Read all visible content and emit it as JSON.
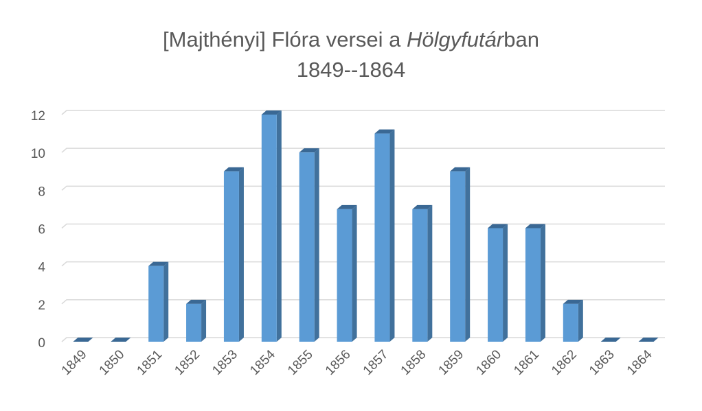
{
  "chart_data": {
    "type": "bar",
    "title": [
      {
        "text": "[Majthényi] Flóra versei a "
      },
      {
        "text": "Hölgyfutár",
        "style": "italic"
      },
      {
        "text": "ban"
      }
    ],
    "subtitle": "1849--1864",
    "categories": [
      "1849",
      "1850",
      "1851",
      "1852",
      "1853",
      "1854",
      "1855",
      "1856",
      "1857",
      "1858",
      "1859",
      "1860",
      "1861",
      "1862",
      "1863",
      "1864"
    ],
    "values": [
      0,
      0,
      4,
      2,
      9,
      12,
      10,
      7,
      11,
      7,
      9,
      6,
      6,
      2,
      0,
      0
    ],
    "color": "#5b9bd5",
    "ylim": [
      0,
      12
    ],
    "yticks": [
      0,
      2,
      4,
      6,
      8,
      10,
      12
    ],
    "grid": true
  }
}
